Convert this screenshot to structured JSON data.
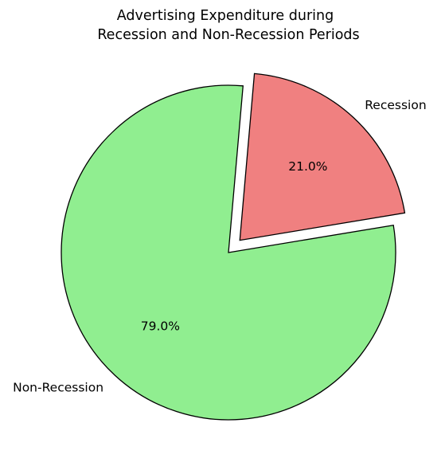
{
  "chart_data": {
    "type": "pie",
    "title_lines": [
      "Advertising Expenditure during",
      "Recession and Non-Recession Periods"
    ],
    "slices": [
      {
        "label": "Recession",
        "value": 21.0,
        "pct_label": "21.0%",
        "color": "#f08080",
        "exploded": true
      },
      {
        "label": "Non-Recession",
        "value": 79.0,
        "pct_label": "79.0%",
        "color": "#90ee90",
        "exploded": false
      }
    ],
    "start_angle_deg": 85,
    "direction": "clockwise",
    "edge_color": "#000000"
  }
}
